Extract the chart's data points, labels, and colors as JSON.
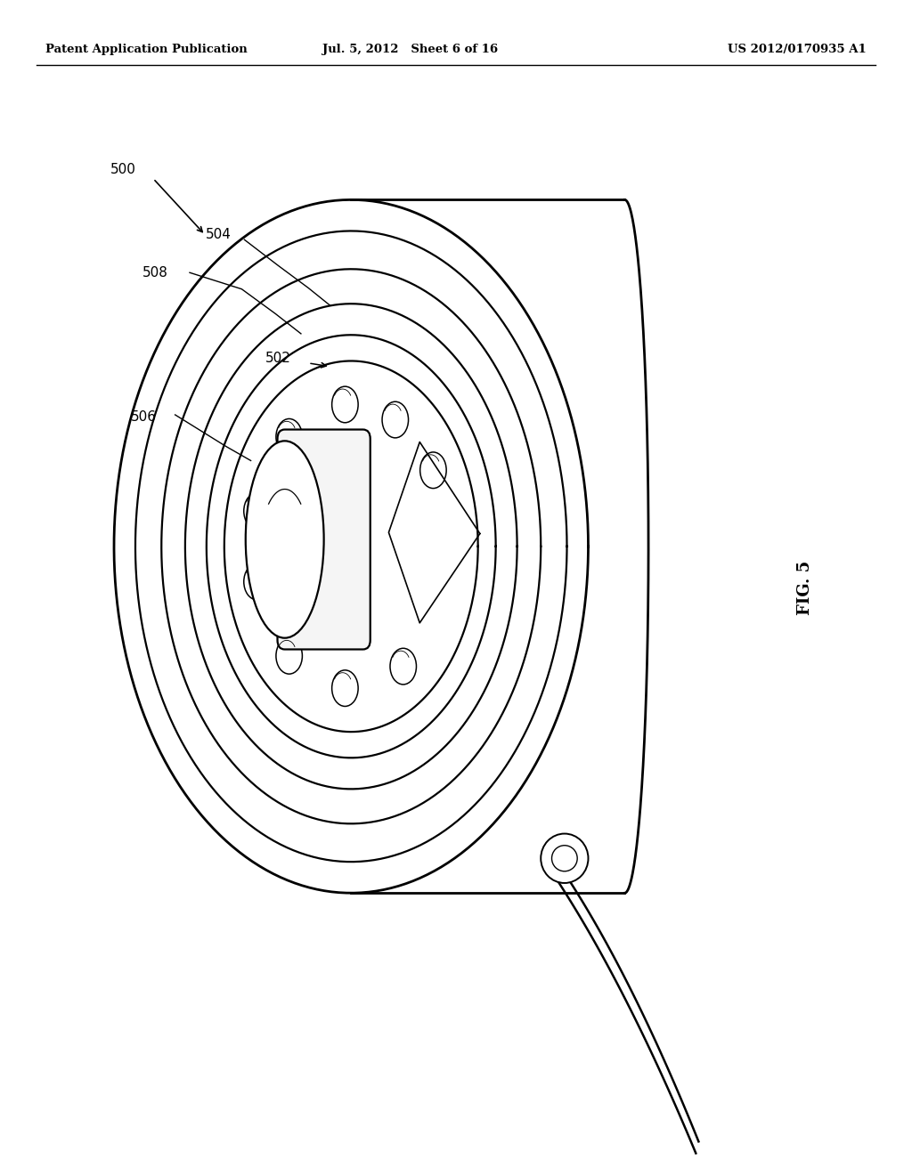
{
  "header_left": "Patent Application Publication",
  "header_mid": "Jul. 5, 2012   Sheet 6 of 16",
  "header_right": "US 2012/0170935 A1",
  "fig_label": "FIG. 5",
  "bg_color": "#ffffff",
  "line_color": "#000000"
}
